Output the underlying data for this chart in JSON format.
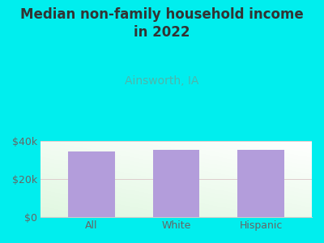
{
  "title": "Median non-family household income\nin 2022",
  "subtitle": "Ainsworth, IA",
  "categories": [
    "All",
    "White",
    "Hispanic"
  ],
  "values": [
    34500,
    35200,
    35200
  ],
  "bar_color": "#b39ddb",
  "background_color": "#00EEEE",
  "title_color": "#333333",
  "subtitle_color": "#4db6ac",
  "tick_color": "#666666",
  "grid_color": "#ddcccc",
  "ylim": [
    0,
    40000
  ],
  "yticks": [
    0,
    20000,
    40000
  ],
  "ytick_labels": [
    "$0",
    "$20k",
    "$40k"
  ],
  "title_fontsize": 12,
  "subtitle_fontsize": 10,
  "tick_fontsize": 9,
  "bar_width": 0.55
}
